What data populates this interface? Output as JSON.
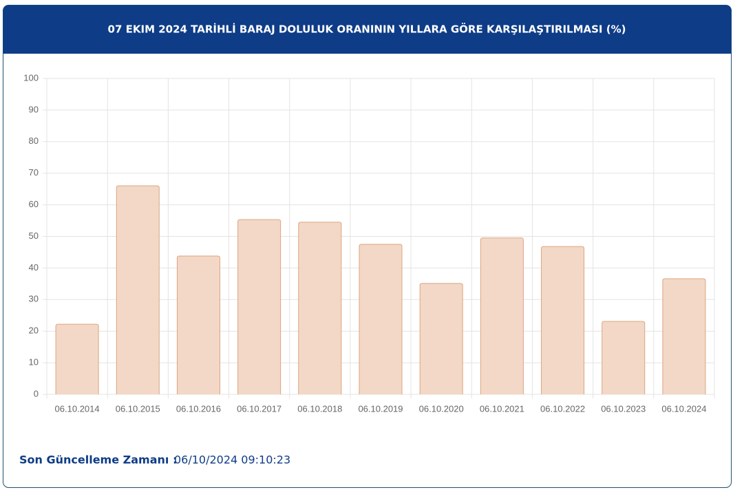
{
  "chart_data": {
    "type": "bar",
    "title": "07 EKIM 2024 TARİHLİ BARAJ DOLULUK ORANININ YILLARA GÖRE KARŞILAŞTIRILMASI (%)",
    "categories": [
      "06.10.2014",
      "06.10.2015",
      "06.10.2016",
      "06.10.2017",
      "06.10.2018",
      "06.10.2019",
      "06.10.2020",
      "06.10.2021",
      "06.10.2022",
      "06.10.2023",
      "06.10.2024"
    ],
    "values": [
      22.2,
      66.0,
      43.8,
      55.3,
      54.5,
      47.5,
      35.1,
      49.5,
      46.8,
      23.1,
      36.6
    ],
    "color": "#f3d8c7",
    "border_color": "#dba47f",
    "ylim": [
      0,
      100
    ],
    "yticks": [
      0,
      10,
      20,
      30,
      40,
      50,
      60,
      70,
      80,
      90,
      100
    ],
    "grid": true
  },
  "footer": {
    "label": "Son Güncelleme Zamanı :",
    "value": "06/10/2024 09:10:23"
  }
}
